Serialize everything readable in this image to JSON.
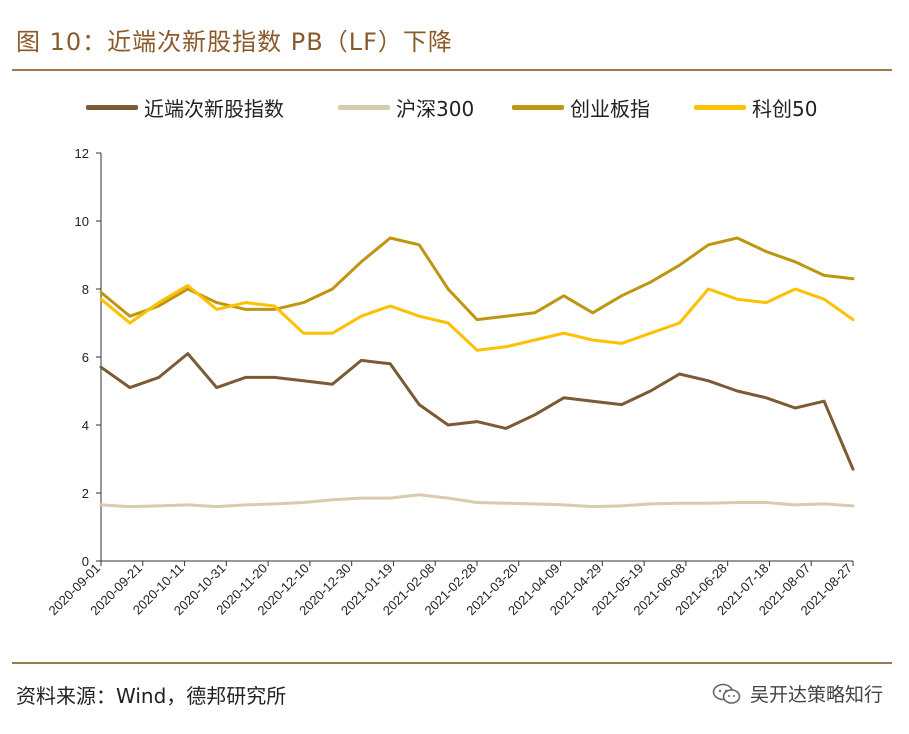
{
  "header": {
    "title": "图 10：近端次新股指数 PB（LF）下降"
  },
  "footer": {
    "source": "资料来源：Wind，德邦研究所",
    "watermark": "吴开达策略知行"
  },
  "colors": {
    "rule": "#A0784E",
    "title": "#8B5A2B",
    "series": [
      "#7B5A35",
      "#D8CBB0",
      "#BF9612",
      "#FFC000"
    ]
  },
  "chart_data": {
    "type": "line",
    "title": "近端次新股指数 PB（LF）下降",
    "xlabel": "",
    "ylabel": "",
    "ylim": [
      0,
      12
    ],
    "yticks": [
      0,
      2,
      4,
      6,
      8,
      10,
      12
    ],
    "grid": false,
    "legend_position": "top",
    "x_tick_labels": [
      "2020-09-01",
      "2020-09-21",
      "2020-10-11",
      "2020-10-31",
      "2020-11-20",
      "2020-12-10",
      "2020-12-30",
      "2021-01-19",
      "2021-02-08",
      "2021-02-28",
      "2021-03-20",
      "2021-04-09",
      "2021-04-29",
      "2021-05-19",
      "2021-06-08",
      "2021-06-28",
      "2021-07-18",
      "2021-08-07",
      "2021-08-27"
    ],
    "series": [
      {
        "name": "近端次新股指数",
        "color": "#7B5A35",
        "values": [
          5.7,
          5.1,
          5.4,
          6.1,
          5.1,
          5.4,
          5.4,
          5.3,
          5.2,
          5.9,
          5.8,
          4.6,
          4.0,
          4.1,
          3.9,
          4.3,
          4.8,
          4.7,
          4.6,
          5.0,
          5.5,
          5.3,
          5.0,
          4.8,
          4.5,
          4.7,
          2.7
        ]
      },
      {
        "name": "沪深300",
        "color": "#D8CBB0",
        "values": [
          1.65,
          1.6,
          1.62,
          1.65,
          1.6,
          1.65,
          1.68,
          1.72,
          1.8,
          1.85,
          1.85,
          1.95,
          1.85,
          1.72,
          1.7,
          1.68,
          1.65,
          1.6,
          1.62,
          1.68,
          1.7,
          1.7,
          1.72,
          1.72,
          1.65,
          1.68,
          1.62
        ]
      },
      {
        "name": "创业板指",
        "color": "#BF9612",
        "values": [
          7.9,
          7.2,
          7.5,
          8.0,
          7.6,
          7.4,
          7.4,
          7.6,
          8.0,
          8.8,
          9.5,
          9.3,
          8.0,
          7.1,
          7.2,
          7.3,
          7.8,
          7.3,
          7.8,
          8.2,
          8.7,
          9.3,
          9.5,
          9.1,
          8.8,
          8.4,
          8.3
        ]
      },
      {
        "name": "科创50",
        "color": "#FFC000",
        "values": [
          7.7,
          7.0,
          7.6,
          8.1,
          7.4,
          7.6,
          7.5,
          6.7,
          6.7,
          7.2,
          7.5,
          7.2,
          7.0,
          6.2,
          6.3,
          6.5,
          6.7,
          6.5,
          6.4,
          6.7,
          7.0,
          8.0,
          7.7,
          7.6,
          8.0,
          7.7,
          7.1
        ]
      }
    ]
  }
}
